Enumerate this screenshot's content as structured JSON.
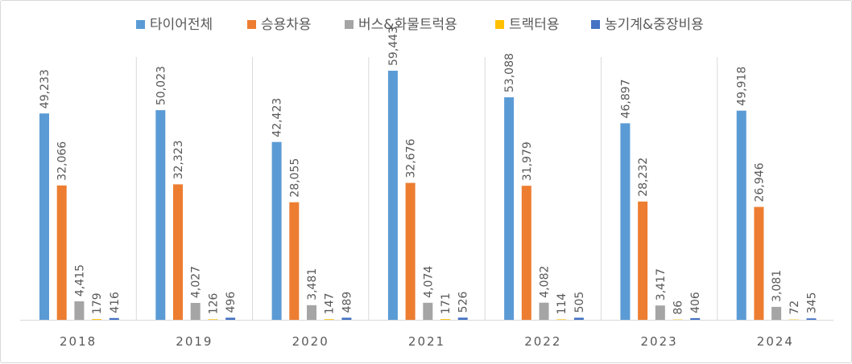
{
  "chart_data": {
    "type": "bar",
    "categories": [
      "2018",
      "2019",
      "2020",
      "2021",
      "2022",
      "2023",
      "2024"
    ],
    "series": [
      {
        "name": "타이어전체",
        "color": "#5B9BD5",
        "values": [
          49233,
          50023,
          42423,
          59443,
          53088,
          46897,
          49918
        ]
      },
      {
        "name": "승용차용",
        "color": "#ED7D31",
        "values": [
          32066,
          32323,
          28055,
          32676,
          31979,
          28232,
          26946
        ]
      },
      {
        "name": "버스&화물트럭용",
        "color": "#A5A5A5",
        "values": [
          4415,
          4027,
          3481,
          4074,
          4082,
          3417,
          3081
        ]
      },
      {
        "name": "트랙터용",
        "color": "#FFC000",
        "values": [
          179,
          126,
          147,
          171,
          114,
          86,
          72
        ]
      },
      {
        "name": "농기계&중장비용",
        "color": "#4472C4",
        "values": [
          416,
          496,
          489,
          526,
          505,
          406,
          345
        ]
      }
    ],
    "ylim": [
      0,
      65000
    ],
    "grid": false,
    "legend": "top",
    "category_separators": true
  }
}
